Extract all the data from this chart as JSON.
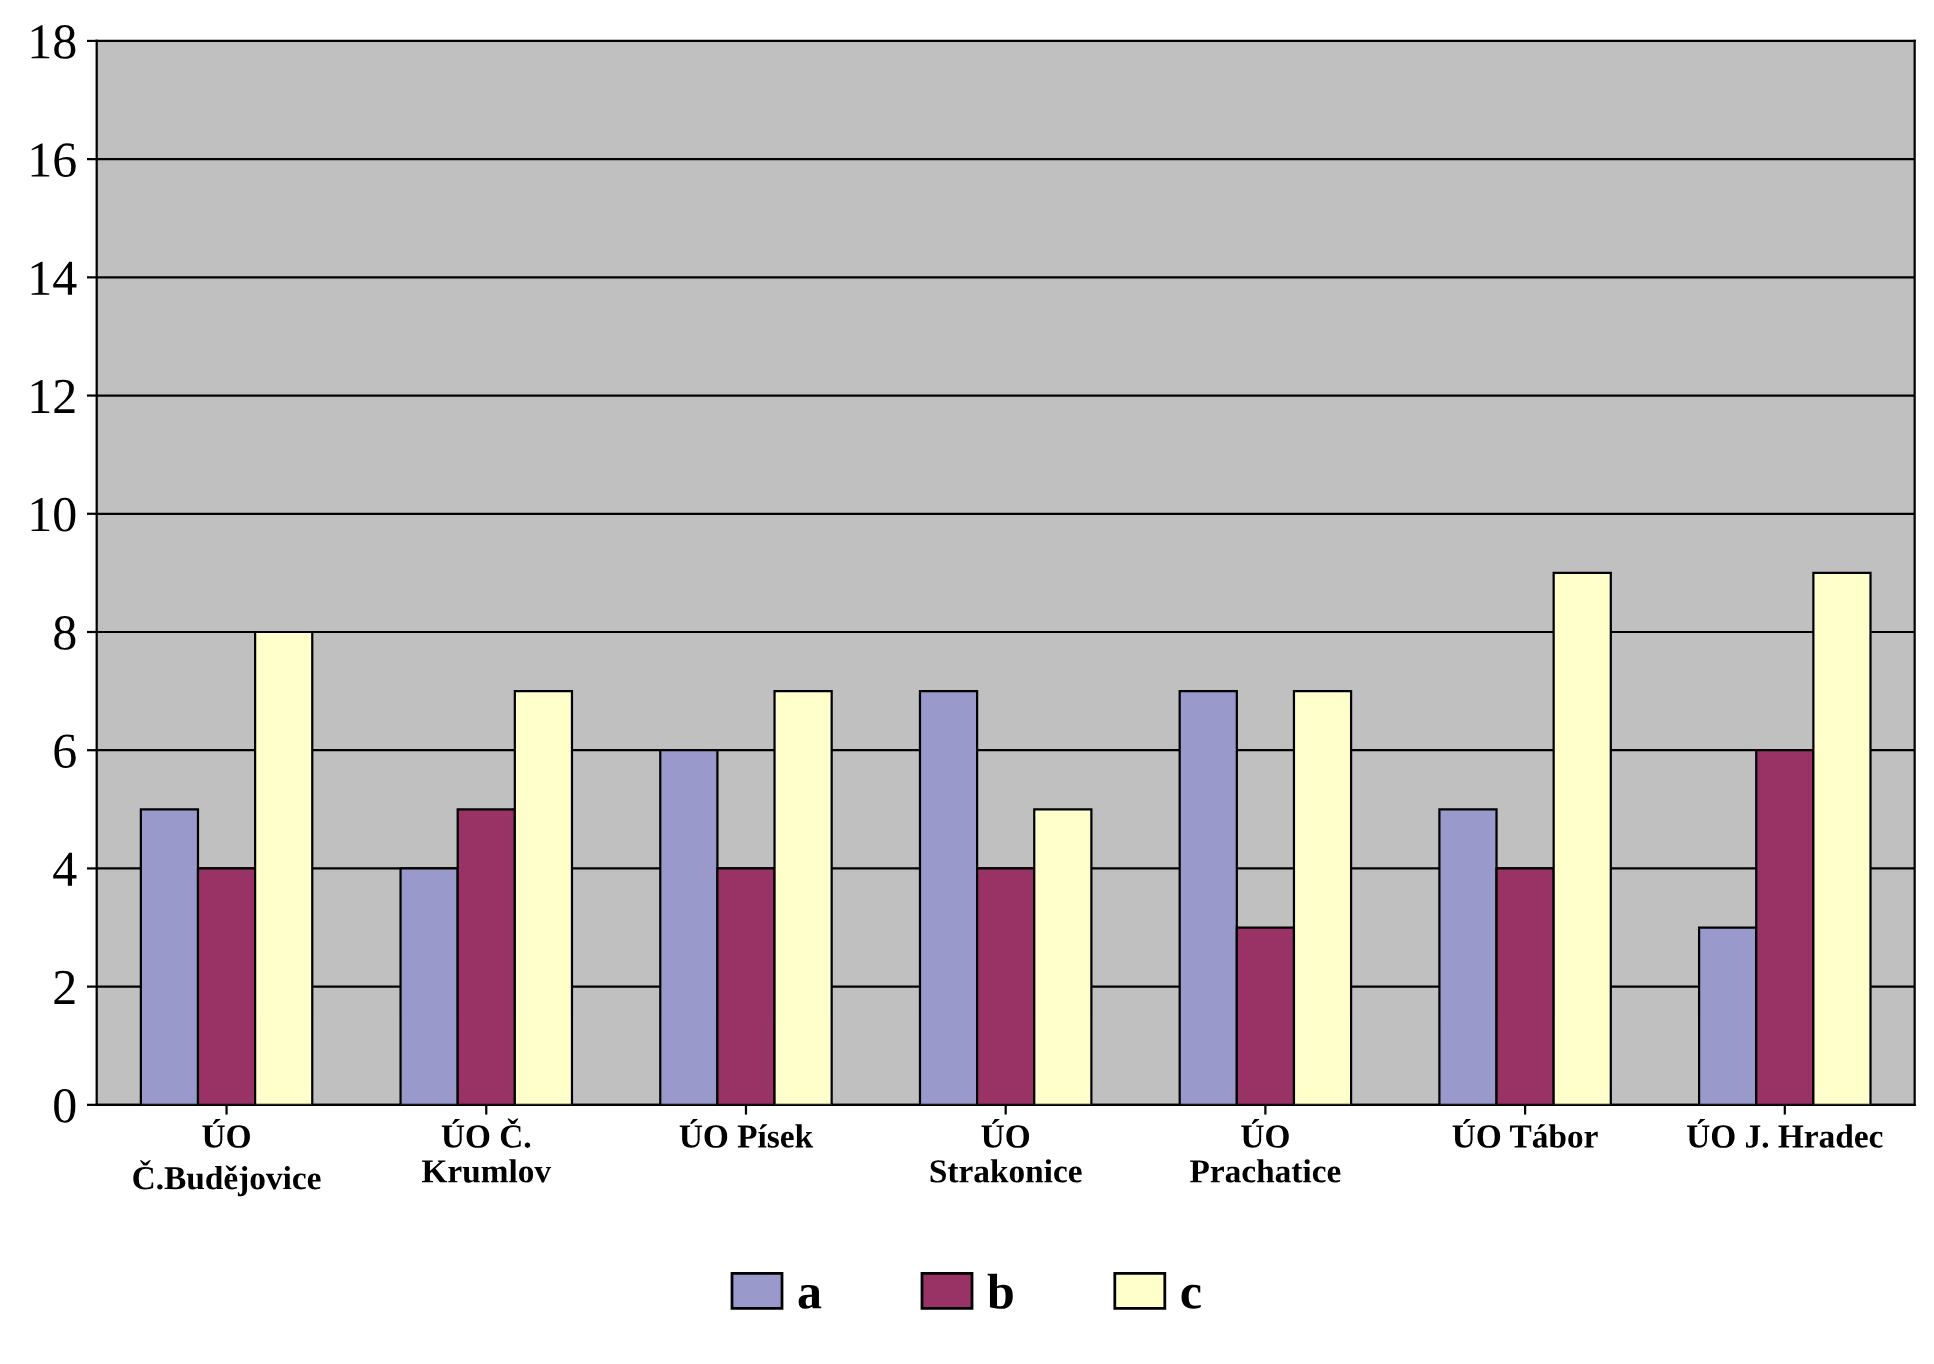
{
  "chart_data": {
    "type": "bar",
    "categories": [
      "ÚO\nČ.Budějovice",
      "ÚO Č.\nKrumlov",
      "ÚO Písek",
      "ÚO\nStrakonice",
      "ÚO\nPrachatice",
      "ÚO Tábor",
      "ÚO J. Hradec"
    ],
    "series": [
      {
        "name": "a",
        "color": "#9999cc",
        "values": [
          5,
          4,
          6,
          7,
          7,
          5,
          3
        ]
      },
      {
        "name": "b",
        "color": "#993366",
        "values": [
          4,
          5,
          4,
          4,
          3,
          4,
          6
        ]
      },
      {
        "name": "c",
        "color": "#ffffcc",
        "values": [
          8,
          7,
          7,
          5,
          7,
          9,
          9
        ]
      }
    ],
    "ylim": [
      0,
      18
    ],
    "yticks": [
      0,
      2,
      4,
      6,
      8,
      10,
      12,
      14,
      16,
      18
    ],
    "grid": "y",
    "legend": "bottom"
  }
}
